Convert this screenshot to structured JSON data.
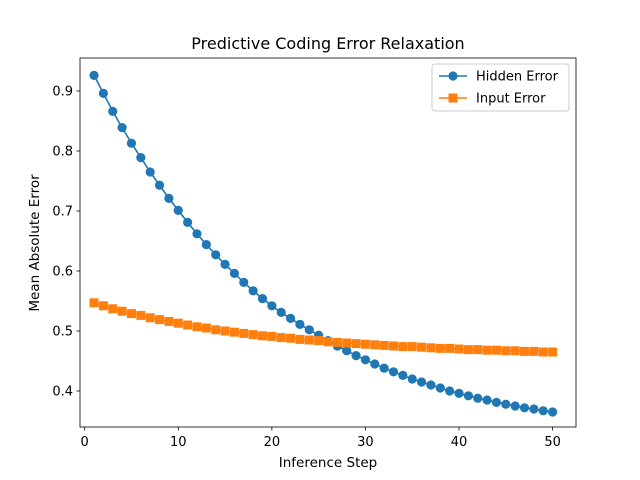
{
  "chart_data": {
    "type": "line",
    "title": "Predictive Coding Error Relaxation",
    "xlabel": "Inference Step",
    "ylabel": "Mean Absolute Error",
    "xlim": [
      -0.5,
      52.5
    ],
    "ylim": [
      0.34,
      0.955
    ],
    "xticks": [
      0,
      10,
      20,
      30,
      40,
      50
    ],
    "yticks": [
      0.4,
      0.5,
      0.6,
      0.7,
      0.8,
      0.9
    ],
    "legend_position": "upper right",
    "grid": false,
    "x": [
      1,
      2,
      3,
      4,
      5,
      6,
      7,
      8,
      9,
      10,
      11,
      12,
      13,
      14,
      15,
      16,
      17,
      18,
      19,
      20,
      21,
      22,
      23,
      24,
      25,
      26,
      27,
      28,
      29,
      30,
      31,
      32,
      33,
      34,
      35,
      36,
      37,
      38,
      39,
      40,
      41,
      42,
      43,
      44,
      45,
      46,
      47,
      48,
      49,
      50
    ],
    "series": [
      {
        "name": "Hidden Error",
        "color": "#1f77b4",
        "marker": "circle",
        "values": [
          0.926,
          0.896,
          0.866,
          0.839,
          0.813,
          0.789,
          0.765,
          0.743,
          0.721,
          0.701,
          0.681,
          0.662,
          0.644,
          0.627,
          0.611,
          0.596,
          0.581,
          0.567,
          0.554,
          0.542,
          0.531,
          0.521,
          0.511,
          0.502,
          0.493,
          0.484,
          0.475,
          0.467,
          0.459,
          0.452,
          0.445,
          0.438,
          0.432,
          0.426,
          0.42,
          0.415,
          0.41,
          0.405,
          0.4,
          0.396,
          0.392,
          0.388,
          0.385,
          0.381,
          0.378,
          0.375,
          0.372,
          0.37,
          0.367,
          0.365
        ]
      },
      {
        "name": "Input Error",
        "color": "#ff7f0e",
        "marker": "square",
        "values": [
          0.547,
          0.542,
          0.537,
          0.533,
          0.529,
          0.526,
          0.522,
          0.519,
          0.516,
          0.513,
          0.51,
          0.507,
          0.505,
          0.502,
          0.5,
          0.498,
          0.496,
          0.494,
          0.492,
          0.491,
          0.489,
          0.488,
          0.486,
          0.485,
          0.484,
          0.482,
          0.481,
          0.48,
          0.479,
          0.478,
          0.477,
          0.476,
          0.475,
          0.474,
          0.474,
          0.473,
          0.472,
          0.471,
          0.471,
          0.47,
          0.469,
          0.469,
          0.468,
          0.468,
          0.467,
          0.467,
          0.466,
          0.466,
          0.465,
          0.465
        ]
      }
    ]
  }
}
